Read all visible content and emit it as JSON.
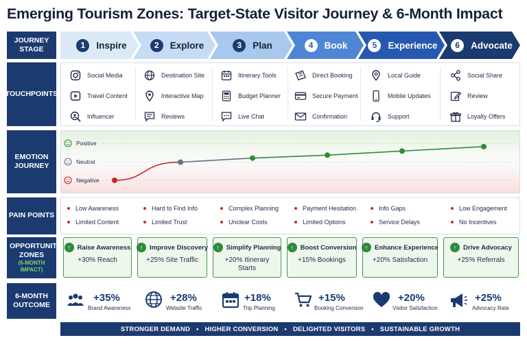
{
  "title": "Emerging Tourism Zones: Target-State Visitor Journey & 6-Month Impact",
  "row_labels": {
    "journey_stage": "JOURNEY STAGE",
    "touchpoints": "TOUCHPOINTS",
    "emotion": "EMOTION JOURNEY",
    "pain_points": "PAIN POINTS",
    "opportunity": "OPPORTUNITY ZONES",
    "opportunity_sub": "(6-MONTH IMPACT)",
    "outcome": "6-MONTH OUTCOME"
  },
  "stages": [
    {
      "num": "1",
      "name": "Inspire"
    },
    {
      "num": "2",
      "name": "Explore"
    },
    {
      "num": "3",
      "name": "Plan"
    },
    {
      "num": "4",
      "name": "Book"
    },
    {
      "num": "5",
      "name": "Experience"
    },
    {
      "num": "6",
      "name": "Advocate"
    }
  ],
  "touchpoints": [
    [
      {
        "label": "Social Media",
        "icon": "instagram-icon"
      },
      {
        "label": "Travel Content",
        "icon": "play-icon"
      },
      {
        "label": "Influencer",
        "icon": "search-person-icon"
      }
    ],
    [
      {
        "label": "Destination Site",
        "icon": "globe-icon"
      },
      {
        "label": "Interactive Map",
        "icon": "map-pin-icon"
      },
      {
        "label": "Reviews",
        "icon": "chat-lines-icon"
      }
    ],
    [
      {
        "label": "Itinerary Tools",
        "icon": "calendar-icon"
      },
      {
        "label": "Budget Planner",
        "icon": "calculator-icon"
      },
      {
        "label": "Live Chat",
        "icon": "chat-dots-icon"
      }
    ],
    [
      {
        "label": "Direct Booking",
        "icon": "ticket-icon"
      },
      {
        "label": "Secure Payment",
        "icon": "credit-card-icon"
      },
      {
        "label": "Confirmation",
        "icon": "envelope-icon"
      }
    ],
    [
      {
        "label": "Local Guide",
        "icon": "location-icon"
      },
      {
        "label": "Mobile Updates",
        "icon": "smartphone-icon"
      },
      {
        "label": "Support",
        "icon": "headset-icon"
      }
    ],
    [
      {
        "label": "Social Share",
        "icon": "share-icon"
      },
      {
        "label": "Review",
        "icon": "edit-icon"
      },
      {
        "label": "Loyalty Offers",
        "icon": "gift-icon"
      }
    ]
  ],
  "emotion": {
    "levels": [
      "Positive",
      "Neutral",
      "Negative"
    ],
    "level_icons": [
      "smile-icon",
      "neutral-face-icon",
      "frown-icon"
    ],
    "points": [
      -1.0,
      -0.02,
      0.2,
      0.36,
      0.58,
      0.82
    ],
    "colors": {
      "negative": "#c62828",
      "neutral": "#6b6f78",
      "positive": "#2e8b3a"
    }
  },
  "pain_points": [
    [
      "Low Awareness",
      "Limited Content"
    ],
    [
      "Hard to Find Info",
      "Limited Trust"
    ],
    [
      "Complex Planning",
      "Unclear Costs"
    ],
    [
      "Payment Hesitation",
      "Limited Options"
    ],
    [
      "Info Gaps",
      "Service Delays"
    ],
    [
      "Low Engagement",
      "No Incentives"
    ]
  ],
  "opportunities": [
    {
      "title": "Raise Awareness",
      "value": "+30% Reach"
    },
    {
      "title": "Improve Discovery",
      "value": "+25% Site Traffic"
    },
    {
      "title": "Simplify Planning",
      "value": "+20% Itinerary Starts"
    },
    {
      "title": "Boost Conversion",
      "value": "+15% Bookings"
    },
    {
      "title": "Enhance Experience",
      "value": "+20% Satisfaction"
    },
    {
      "title": "Drive Advocacy",
      "value": "+25% Referrals"
    }
  ],
  "outcomes": [
    {
      "value": "+35%",
      "label": "Brand Awareness",
      "icon": "people-icon"
    },
    {
      "value": "+28%",
      "label": "Website Traffic",
      "icon": "globe-icon"
    },
    {
      "value": "+18%",
      "label": "Trip Planning",
      "icon": "calendar-icon"
    },
    {
      "value": "+15%",
      "label": "Booking Conversion",
      "icon": "cart-icon"
    },
    {
      "value": "+20%",
      "label": "Visitor Satisfaction",
      "icon": "heart-icon"
    },
    {
      "value": "+25%",
      "label": "Advocacy Rate",
      "icon": "megaphone-icon"
    }
  ],
  "banner": {
    "items": [
      "STRONGER DEMAND",
      "HIGHER CONVERSION",
      "DELIGHTED VISITORS",
      "SUSTAINABLE GROWTH"
    ],
    "separator": "•"
  },
  "colors": {
    "navy": "#1b3a70",
    "stage_fills": [
      "#dceaf8",
      "#c6dcf4",
      "#a9c8ee",
      "#4f86d4",
      "#2758b0",
      "#1b3a70"
    ],
    "stage_text": [
      "#15213a",
      "#15213a",
      "#15213a",
      "#ffffff",
      "#ffffff",
      "#ffffff"
    ],
    "green": "#2e8b3a"
  }
}
